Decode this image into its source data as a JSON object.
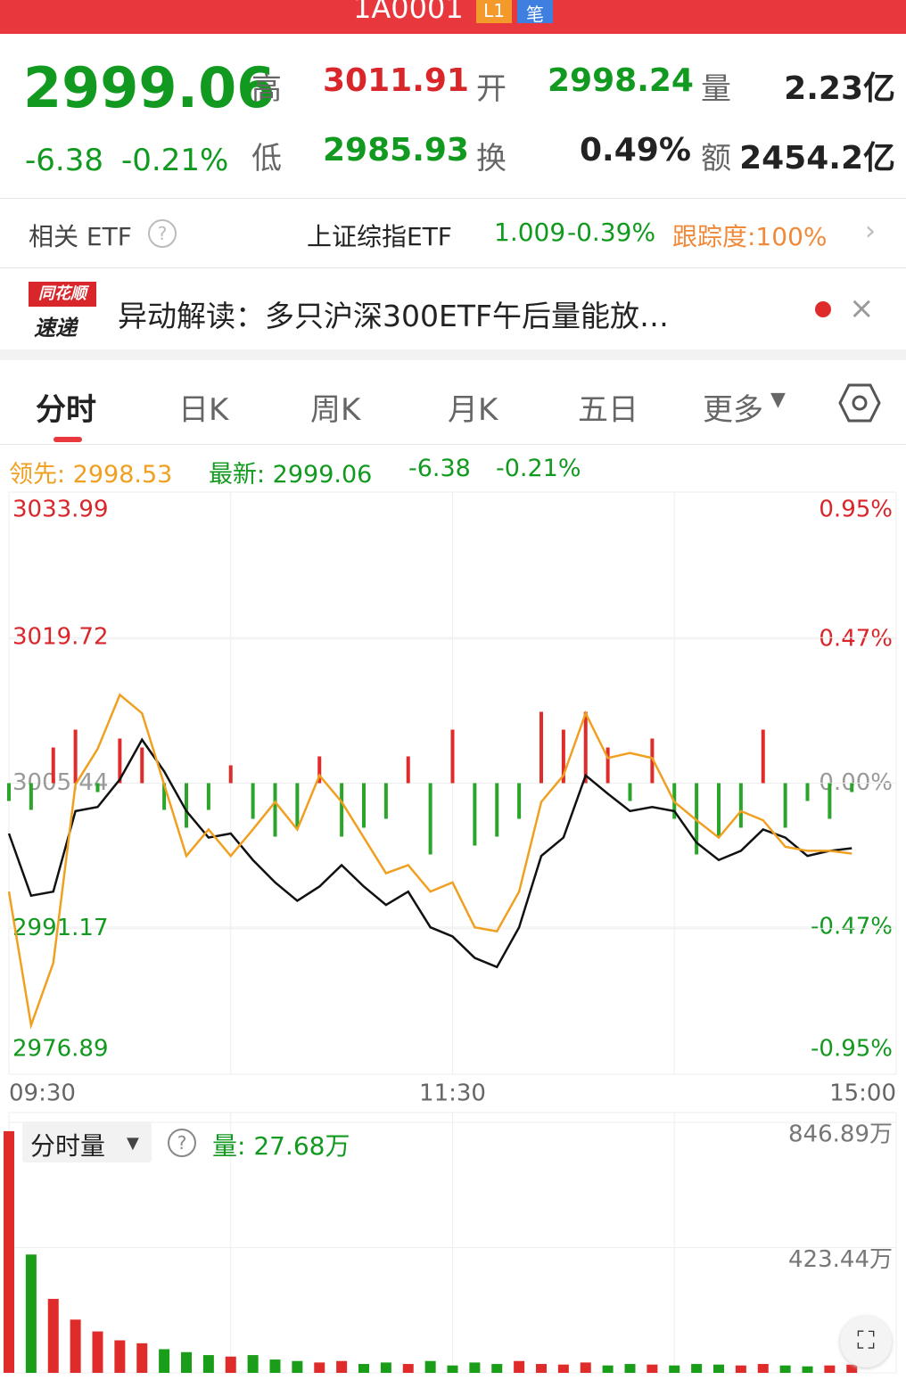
{
  "header": {
    "title": "1A0001",
    "badges": [
      "L1",
      "笔"
    ]
  },
  "quote": {
    "price": "2999.06",
    "change": "-6.38",
    "pct": "-0.21%",
    "fields": [
      {
        "label": "高",
        "value": "3011.91"
      },
      {
        "label": "开",
        "value": "2998.24"
      },
      {
        "label": "量",
        "value": "2.23亿"
      },
      {
        "label": "低",
        "value": "2985.93"
      },
      {
        "label": "换",
        "value": "0.49%"
      },
      {
        "label": "额",
        "value": "2454.2亿"
      }
    ]
  },
  "etf": {
    "label": "相关 ETF",
    "name": "上证综指ETF",
    "price": "1.009",
    "pct": "-0.39%",
    "track": "跟踪度:100%"
  },
  "news": {
    "logo": [
      "同花顺",
      "速递"
    ],
    "text": "异动解读：多只沪深300ETF午后量能放…"
  },
  "tabs": [
    "分时",
    "日K",
    "周K",
    "月K",
    "五日",
    "更多"
  ],
  "info": [
    "领先: 2998.53",
    "最新: 2999.06",
    "-6.38",
    "-0.21%"
  ],
  "volume_header": {
    "label": "分时量",
    "value": "量: 27.68万"
  },
  "chart_data": [
    {
      "type": "line",
      "x": [
        0,
        6,
        12,
        18,
        24,
        30,
        36,
        42,
        48,
        54,
        60,
        66,
        72,
        78,
        84,
        90,
        96,
        102,
        108,
        114,
        120,
        126,
        132,
        138,
        144,
        150,
        156,
        162,
        168,
        174,
        180,
        186,
        192,
        198,
        204,
        210,
        216,
        222,
        228
      ],
      "xlim": [
        0,
        240
      ],
      "xticks": [
        {
          "value": 0,
          "label": "09:30"
        },
        {
          "value": 120,
          "label": "11:30"
        },
        {
          "value": 240,
          "label": "15:00"
        }
      ],
      "ylim": [
        2976.89,
        3033.99
      ],
      "yticks": [
        3033.99,
        3019.72,
        3005.44,
        2991.17,
        2976.89
      ],
      "y2lim": [
        -0.95,
        0.95
      ],
      "y2ticks": [
        {
          "value": 0.95,
          "label": "0.95%"
        },
        {
          "value": 0.47,
          "label": "0.47%"
        },
        {
          "value": 0,
          "label": "0.00%"
        },
        {
          "value": -0.47,
          "label": "-0.47%"
        },
        {
          "value": -0.95,
          "label": "-0.95%"
        }
      ],
      "grid": true,
      "series": [
        {
          "name": "最新",
          "color": "#111111",
          "values": [
            3000.5,
            2994.4,
            2994.8,
            3002.7,
            3003.1,
            3005.8,
            3009.7,
            3006.6,
            3002.7,
            3000.1,
            3000.5,
            2997.9,
            2995.7,
            2993.9,
            2995.3,
            2997.4,
            2995.3,
            2993.5,
            2994.8,
            2991.3,
            2990.4,
            2988.3,
            2987.4,
            2991.3,
            2998.3,
            3000.1,
            3006.2,
            3004.4,
            3002.7,
            3003.1,
            3002.7,
            2999.6,
            2997.9,
            2998.8,
            3000.9,
            3000.1,
            2998.3,
            2998.8,
            2999.06
          ]
        },
        {
          "name": "领先",
          "color": "#f0a020",
          "values": [
            2994.8,
            2981.7,
            2987.8,
            3005.3,
            3008.8,
            3014.1,
            3012.3,
            3005.3,
            2998.3,
            3000.9,
            2998.3,
            3000.9,
            3003.6,
            3000.9,
            3006.2,
            3003.6,
            3000.1,
            2996.6,
            2997.4,
            2994.8,
            2995.7,
            2991.3,
            2990.9,
            2994.8,
            3003.6,
            3006.2,
            3012.3,
            3007.9,
            3008.4,
            3007.9,
            3003.6,
            3001.8,
            3000.1,
            3002.7,
            3001.8,
            2999.2,
            2998.8,
            2998.8,
            2998.53
          ]
        }
      ],
      "flow": {
        "colors": [
          "#e02b2b",
          "#2aa52a"
        ],
        "values": [
          -20,
          -30,
          40,
          60,
          -10,
          50,
          40,
          -30,
          -50,
          -30,
          20,
          -40,
          -60,
          -50,
          30,
          -60,
          -50,
          -40,
          30,
          -80,
          60,
          -70,
          -60,
          -40,
          80,
          60,
          80,
          40,
          -20,
          50,
          -40,
          -80,
          -60,
          -50,
          60,
          -50,
          -20,
          -40,
          -10
        ]
      }
    },
    {
      "type": "bar",
      "x": [
        0,
        6,
        12,
        18,
        24,
        30,
        36,
        42,
        48,
        54,
        60,
        66,
        72,
        78,
        84,
        90,
        96,
        102,
        108,
        114,
        120,
        126,
        132,
        138,
        144,
        150,
        156,
        162,
        168,
        174,
        180,
        186,
        192,
        198,
        204,
        210,
        216,
        222,
        228
      ],
      "xlim": [
        0,
        240
      ],
      "ylim": [
        0,
        880
      ],
      "yticks": [
        {
          "value": 846.89,
          "label": "846.89万"
        },
        {
          "value": 423.44,
          "label": "423.44万"
        }
      ],
      "colors": [
        "#e02b2b",
        "#1a9e1a"
      ],
      "values": [
        817,
        400,
        250,
        180,
        140,
        110,
        100,
        80,
        70,
        60,
        55,
        60,
        45,
        40,
        35,
        40,
        30,
        35,
        30,
        40,
        25,
        35,
        30,
        40,
        30,
        28,
        35,
        25,
        30,
        28,
        25,
        30,
        28,
        25,
        30,
        25,
        22,
        25,
        27.68
      ]
    }
  ]
}
